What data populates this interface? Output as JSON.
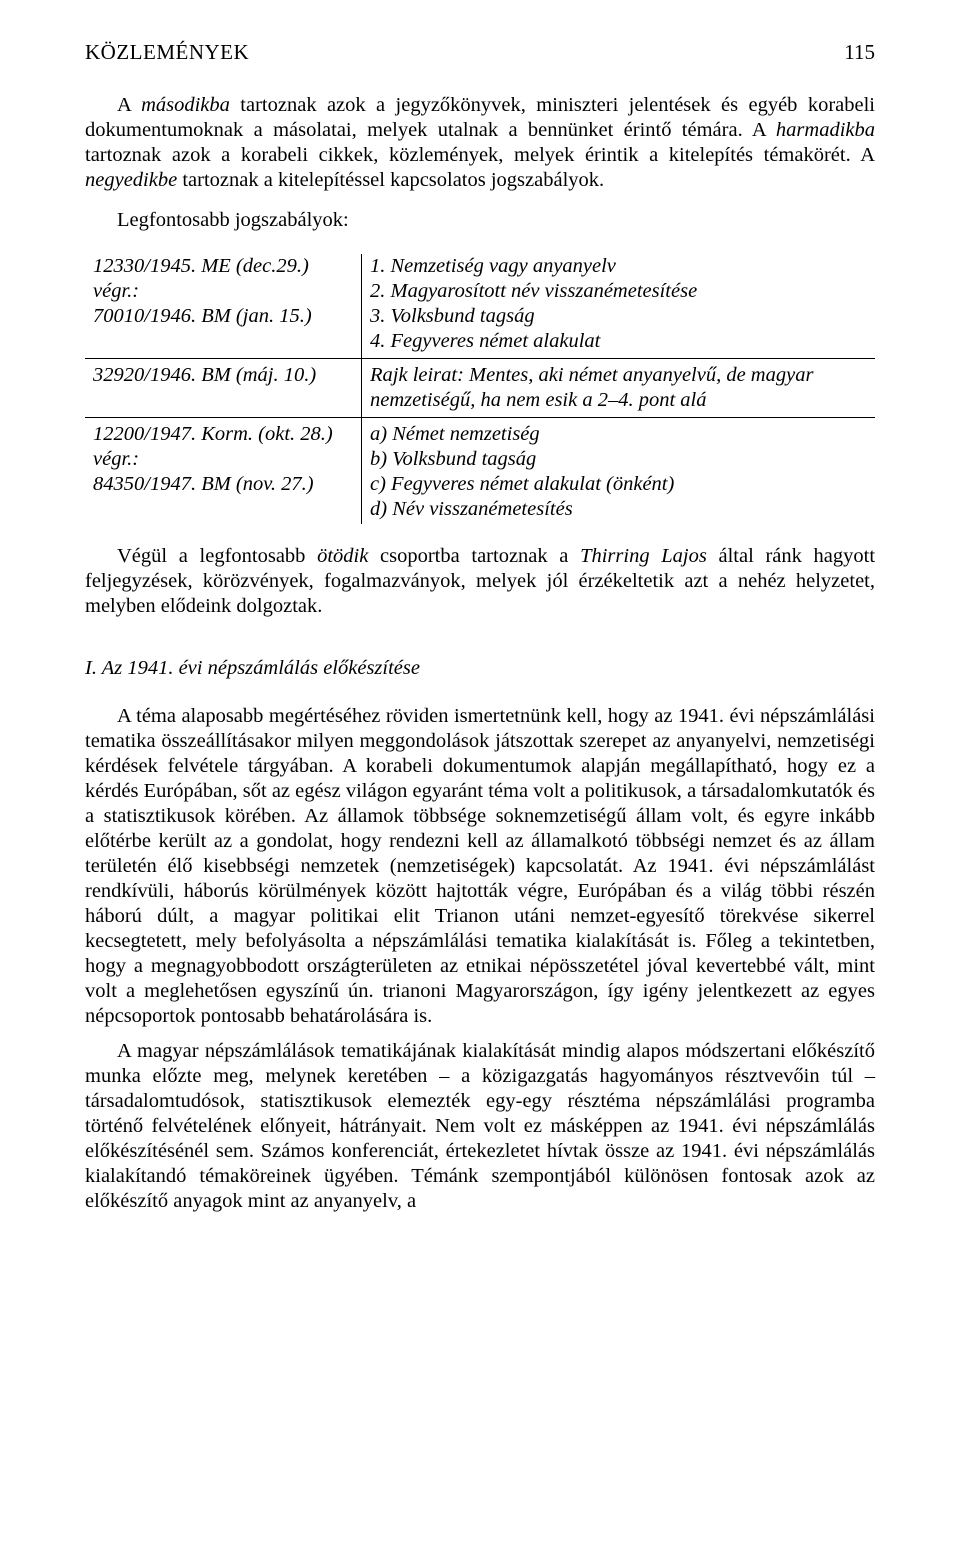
{
  "header": {
    "title": "KÖZLEMÉNYEK",
    "pageNumber": "115"
  },
  "p1_prefix": "A ",
  "p1_em1": "másodikba",
  "p1_mid1": " tartoznak azok a jegyzőkönyvek, miniszteri jelentések és egyéb korabeli dokumentumoknak a másolatai, melyek utalnak a bennünket érintő témára. A ",
  "p1_em2": "harmadikba",
  "p1_mid2": " tartoznak azok a korabeli cikkek, közlemények, melyek érintik a kitelepítés témakörét. A ",
  "p1_em3": "negyedikbe",
  "p1_suffix": " tartoznak a kitelepítéssel kapcsolatos jogszabályok.",
  "lawsLabel": "Legfontosabb jogszabályok:",
  "lawsTable": {
    "r1": {
      "left": "12330/1945. ME (dec.29.) végr.:\n70010/1946. BM (jan. 15.)",
      "right": "1. Nemzetiség vagy anyanyelv\n2. Magyarosított név visszanémetesítése\n3. Volksbund tagság\n4. Fegyveres német alakulat"
    },
    "r2": {
      "left": "32920/1946. BM (máj. 10.)",
      "right": "Rajk leirat: Mentes, aki német anyanyelvű, de magyar nemzetiségű, ha nem esik a 2–4. pont alá"
    },
    "r3": {
      "left": "12200/1947. Korm. (okt. 28.) végr.:\n84350/1947. BM (nov. 27.)",
      "right": "a) Német nemzetiség\nb) Volksbund tagság\nc) Fegyveres német alakulat (önként)\nd) Név visszanémetesítés"
    }
  },
  "p2_prefix": "Végül a legfontosabb ",
  "p2_em1": "ötödik",
  "p2_mid1": " csoportba tartoznak a ",
  "p2_em2": "Thirring Lajos",
  "p2_suffix": " által ránk hagyott feljegyzések, körözvények, fogalmazványok, melyek jól érzékeltetik azt a nehéz helyzetet, melyben elődeink dolgoztak.",
  "sectionHeading": "I. Az 1941. évi népszámlálás előkészítése",
  "p3": "A téma alaposabb megértéséhez röviden ismertetnünk kell, hogy az 1941. évi népszámlálási tematika összeállításakor milyen meggondolások játszottak szerepet az anyanyelvi, nemzetiségi kérdések felvétele tárgyában. A korabeli dokumentumok alapján megállapítható, hogy ez a kérdés Európában, sőt az egész világon egyaránt téma volt a politikusok, a társadalomkutatók és a statisztikusok körében. Az államok többsége soknemzetiségű állam volt, és egyre inkább előtérbe került az a gondolat, hogy rendezni kell az államalkotó többségi nemzet és az állam területén élő kisebbségi nemzetek (nemzetiségek) kapcsolatát. Az 1941. évi népszámlálást rendkívüli, háborús körülmények között hajtották végre, Európában és a világ többi részén háború dúlt, a magyar politikai elit Trianon utáni nemzet-egyesítő törekvése sikerrel kecsegtetett, mely befolyásolta a népszámlálási tematika kialakítását is. Főleg a tekintetben, hogy a megnagyobbodott országterületen az etnikai népösszetétel jóval kevertebbé vált, mint volt a meglehetősen egyszínű ún. trianoni Magyarországon, így igény jelentkezett az egyes népcsoportok pontosabb behatárolására is.",
  "p4": "A magyar népszámlálások tematikájának kialakítását mindig alapos módszertani előkészítő munka előzte meg, melynek keretében – a közigazgatás hagyományos résztvevőin túl – társadalomtudósok, statisztikusok elemezték egy-egy résztéma népszámlálási programba történő felvételének előnyeit, hátrányait. Nem volt ez másképpen az 1941. évi népszámlálás előkészítésénél sem. Számos konferenciát, értekezletet hívtak össze az 1941. évi népszámlálás kialakítandó témaköreinek ügyében. Témánk szempontjából különösen fontosak azok az előkészítő anyagok mint az anyanyelv, a"
}
